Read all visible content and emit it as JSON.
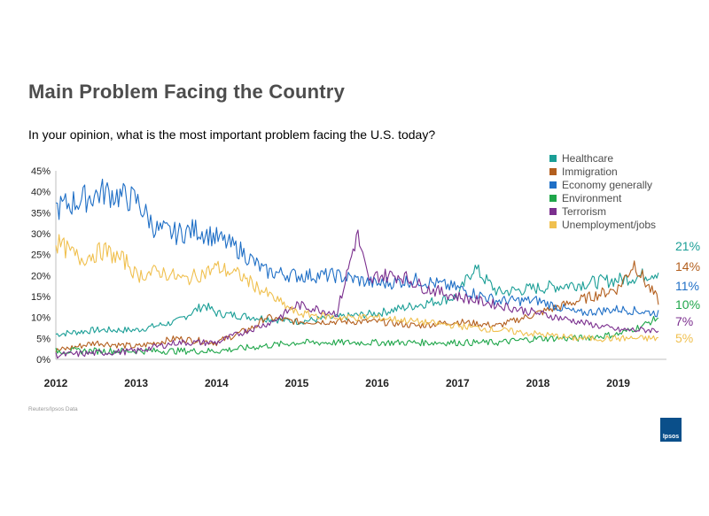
{
  "header": {
    "title": "Main Problem Facing the Country",
    "subtitle": "In your opinion,  what is the most important problem facing the U.S. today?"
  },
  "footer": {
    "source": "Reuters/Ipsos Data",
    "logo_text": "Ipsos"
  },
  "chart_data": {
    "type": "line",
    "title": "Main Problem Facing the Country",
    "subtitle": "In your opinion,  what is the most important problem facing the U.S. today?",
    "xlabel": "",
    "ylabel": "",
    "x_ticks": [
      2012,
      2013,
      2014,
      2015,
      2016,
      2017,
      2018,
      2019
    ],
    "x_range": [
      2012,
      2019.6
    ],
    "ylim": [
      0,
      45
    ],
    "y_ticks": [
      0,
      5,
      10,
      15,
      20,
      25,
      30,
      35,
      40,
      45
    ],
    "y_tick_labels": [
      "0%",
      "5%",
      "10%",
      "15%",
      "20%",
      "25%",
      "30%",
      "35%",
      "40%",
      "45%"
    ],
    "grid": false,
    "legend_position": "top-right",
    "series": [
      {
        "name": "Healthcare",
        "color": "#1a9e96",
        "end_label": "21%",
        "x": [
          2012.0,
          2012.5,
          2013.0,
          2013.5,
          2013.85,
          2014.0,
          2014.5,
          2015.0,
          2015.5,
          2016.0,
          2016.5,
          2017.0,
          2017.2,
          2017.5,
          2018.0,
          2018.5,
          2019.0,
          2019.3,
          2019.5
        ],
        "values": [
          6,
          7,
          7,
          9,
          13,
          11,
          10,
          9,
          10,
          11,
          13,
          15,
          22,
          16,
          17,
          18,
          19,
          20,
          21
        ]
      },
      {
        "name": "Immigration",
        "color": "#b35f1e",
        "end_label": "14%",
        "x": [
          2012.0,
          2012.5,
          2013.0,
          2013.5,
          2014.0,
          2014.5,
          2014.6,
          2015.0,
          2015.5,
          2016.0,
          2016.5,
          2017.0,
          2017.5,
          2018.0,
          2018.5,
          2019.0,
          2019.2,
          2019.35,
          2019.5
        ],
        "values": [
          2,
          4,
          3,
          5,
          4,
          8,
          10,
          9,
          9,
          9,
          8,
          9,
          8,
          11,
          14,
          17,
          23,
          18,
          14
        ]
      },
      {
        "name": "Economy generally",
        "color": "#1f6fc6",
        "end_label": "11%",
        "x": [
          2012.0,
          2012.3,
          2012.6,
          2012.8,
          2013.0,
          2013.25,
          2013.5,
          2013.75,
          2014.0,
          2014.3,
          2014.6,
          2015.0,
          2015.5,
          2016.0,
          2016.5,
          2017.0,
          2017.5,
          2018.0,
          2018.5,
          2019.0,
          2019.5
        ],
        "values": [
          36,
          38,
          40,
          39,
          38,
          31,
          30,
          31,
          29,
          26,
          21,
          20,
          20,
          18,
          19,
          17,
          14,
          14,
          11,
          12,
          11
        ]
      },
      {
        "name": "Environment",
        "color": "#1fa64a",
        "end_label": "10%",
        "x": [
          2012.0,
          2013.0,
          2014.0,
          2014.5,
          2015.0,
          2015.5,
          2016.0,
          2016.5,
          2017.0,
          2017.5,
          2018.0,
          2018.5,
          2019.0,
          2019.3,
          2019.5
        ],
        "values": [
          2,
          2,
          2,
          3,
          4,
          4,
          4,
          4,
          4,
          4,
          5,
          5,
          6,
          8,
          10
        ]
      },
      {
        "name": "Terrorism",
        "color": "#7b2f8e",
        "end_label": "7%",
        "x": [
          2012.0,
          2013.0,
          2013.5,
          2014.0,
          2014.4,
          2014.7,
          2015.0,
          2015.5,
          2015.75,
          2015.9,
          2016.0,
          2016.3,
          2016.6,
          2017.0,
          2017.5,
          2018.0,
          2018.5,
          2019.0,
          2019.5
        ],
        "values": [
          1,
          2,
          4,
          4,
          7,
          9,
          13,
          11,
          30,
          18,
          20,
          20,
          17,
          15,
          13,
          11,
          9,
          7,
          7
        ]
      },
      {
        "name": "Unemployment/jobs",
        "color": "#f0c04f",
        "end_label": "5%",
        "x": [
          2012.0,
          2012.3,
          2012.6,
          2012.9,
          2013.0,
          2013.3,
          2013.6,
          2013.9,
          2014.0,
          2014.3,
          2014.6,
          2015.0,
          2015.5,
          2016.0,
          2016.5,
          2017.0,
          2017.5,
          2018.0,
          2018.5,
          2019.0,
          2019.5
        ],
        "values": [
          28,
          24,
          26,
          23,
          20,
          21,
          19,
          21,
          22,
          20,
          16,
          11,
          10,
          10,
          9,
          8,
          7,
          6,
          5,
          5,
          5
        ]
      }
    ]
  }
}
